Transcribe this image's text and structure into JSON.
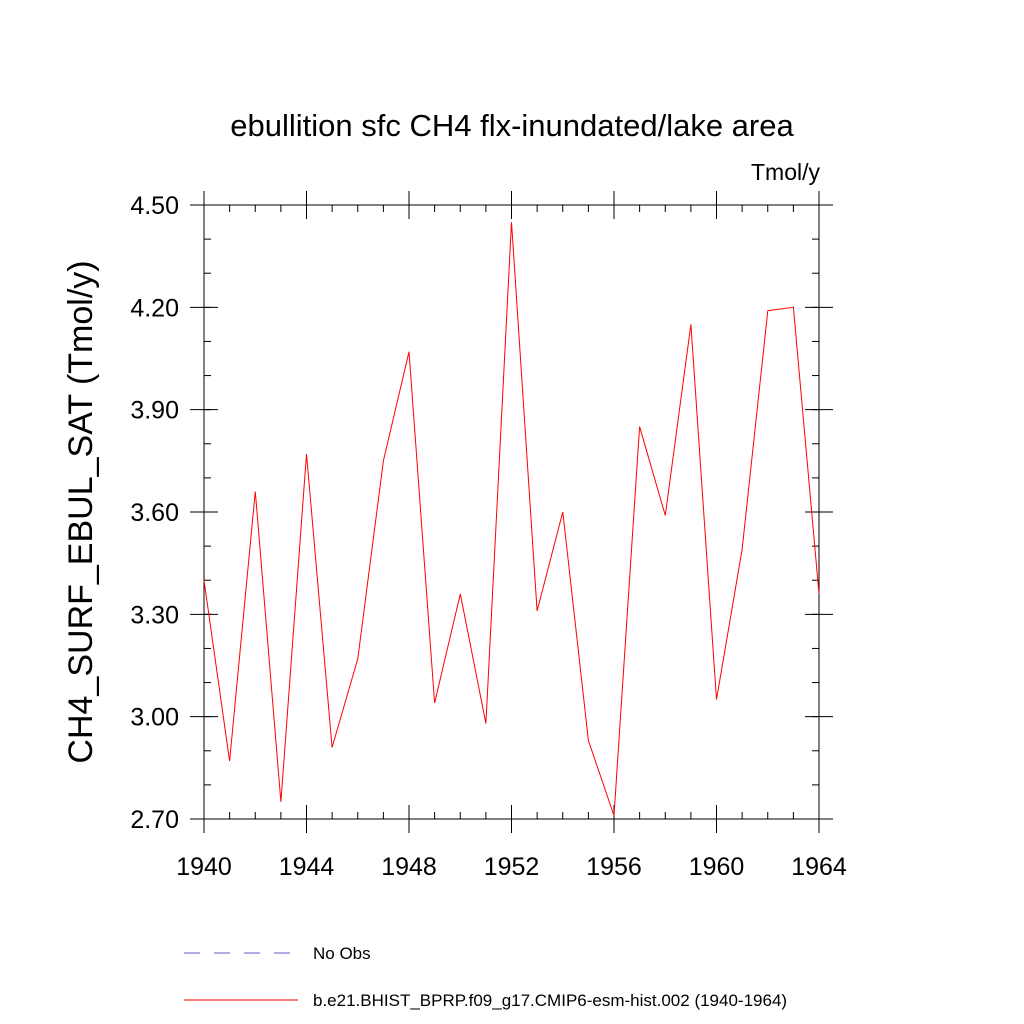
{
  "chart_data": {
    "type": "line",
    "title": "ebullition sfc CH4 flx-inundated/lake area",
    "units": "Tmol/y",
    "xlabel": "",
    "ylabel": "CH4_SURF_EBUL_SAT  (Tmol/y)",
    "xlim": [
      1940,
      1964
    ],
    "ylim": [
      2.7,
      4.5
    ],
    "x_ticks": [
      {
        "value": 1940,
        "label": "1940"
      },
      {
        "value": 1944,
        "label": "1944"
      },
      {
        "value": 1948,
        "label": "1948"
      },
      {
        "value": 1952,
        "label": "1952"
      },
      {
        "value": 1956,
        "label": "1956"
      },
      {
        "value": 1960,
        "label": "1960"
      },
      {
        "value": 1964,
        "label": "1964"
      }
    ],
    "y_ticks": [
      {
        "value": 2.7,
        "label": "2.70"
      },
      {
        "value": 3.0,
        "label": "3.00"
      },
      {
        "value": 3.3,
        "label": "3.30"
      },
      {
        "value": 3.6,
        "label": "3.60"
      },
      {
        "value": 3.9,
        "label": "3.90"
      },
      {
        "value": 4.2,
        "label": "4.20"
      },
      {
        "value": 4.5,
        "label": "4.50"
      }
    ],
    "x_minor_step": 1,
    "y_minor_step": 0.1,
    "series": [
      {
        "name": "b.e21.BHIST_BPRP.f09_g17.CMIP6-esm-hist.002 (1940-1964)",
        "color": "#ff0000",
        "style": "solid",
        "x": [
          1940,
          1941,
          1942,
          1943,
          1944,
          1945,
          1946,
          1947,
          1948,
          1949,
          1950,
          1951,
          1952,
          1953,
          1954,
          1955,
          1956,
          1957,
          1958,
          1959,
          1960,
          1961,
          1962,
          1963,
          1964
        ],
        "values": [
          3.4,
          2.87,
          3.66,
          2.75,
          3.77,
          2.91,
          3.17,
          3.75,
          4.07,
          3.04,
          3.36,
          2.98,
          4.45,
          3.31,
          3.6,
          2.93,
          2.71,
          3.85,
          3.59,
          4.15,
          3.05,
          3.49,
          4.19,
          4.2,
          3.36
        ]
      }
    ],
    "legend": {
      "placement": "bottom",
      "entries": [
        {
          "label": "No Obs",
          "color": "#6a5acd",
          "style": "dashed"
        },
        {
          "label": "b.e21.BHIST_BPRP.f09_g17.CMIP6-esm-hist.002 (1940-1964)",
          "color": "#ff0000",
          "style": "solid"
        }
      ]
    }
  }
}
